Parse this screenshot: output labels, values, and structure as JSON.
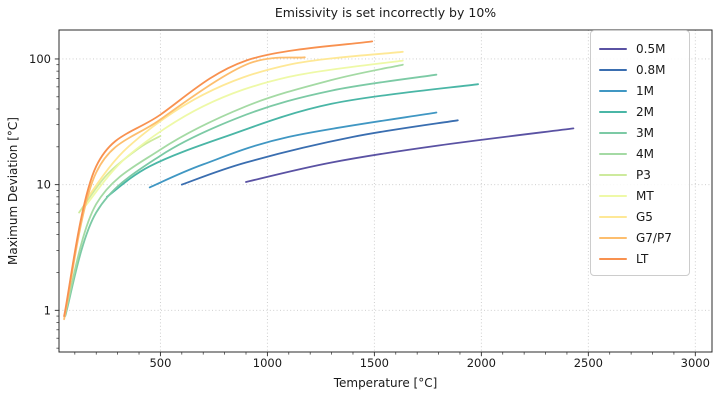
{
  "chart_data": {
    "type": "line",
    "title": "Emissivity is set incorrectly by 10%",
    "xlabel": "Temperature [°C]",
    "ylabel": "Maximum Deviation [°C]",
    "x_scale": "linear",
    "y_scale": "log",
    "xlim": [
      26,
      3078
    ],
    "ylim": [
      0.466,
      170
    ],
    "x_ticks": [
      500,
      1000,
      1500,
      2000,
      2500,
      3000
    ],
    "x_minor_step": 100,
    "y_ticks": [
      1,
      10,
      100
    ],
    "grid": true,
    "grid_style": "dotted",
    "legend_position": "upper right",
    "colors": {
      "spine": "#2b2b2b",
      "grid": "#c9c9c9",
      "tick_label": "#1a1a1a"
    },
    "series": [
      {
        "name": "0.5M",
        "color": "#5a52a3",
        "points": [
          [
            900,
            10.5
          ],
          [
            1300,
            15
          ],
          [
            1800,
            20.5
          ],
          [
            2430,
            28
          ]
        ]
      },
      {
        "name": "0.8M",
        "color": "#3a6eb0",
        "points": [
          [
            600,
            10
          ],
          [
            900,
            15
          ],
          [
            1400,
            24
          ],
          [
            1890,
            32.5
          ]
        ]
      },
      {
        "name": "1M",
        "color": "#4097c3",
        "points": [
          [
            450,
            9.5
          ],
          [
            700,
            14.5
          ],
          [
            1100,
            24
          ],
          [
            1790,
            37.5
          ]
        ]
      },
      {
        "name": "2M",
        "color": "#4ab6a6",
        "points": [
          [
            250,
            8
          ],
          [
            450,
            14
          ],
          [
            800,
            24
          ],
          [
            1300,
            44
          ],
          [
            1985,
            63
          ]
        ]
      },
      {
        "name": "3M",
        "color": "#7ccaa5",
        "points": [
          [
            55,
            0.9
          ],
          [
            200,
            6
          ],
          [
            500,
            17
          ],
          [
            900,
            36
          ],
          [
            1300,
            56
          ],
          [
            1790,
            75
          ]
        ]
      },
      {
        "name": "4M",
        "color": "#a4daa4",
        "points": [
          [
            55,
            0.95
          ],
          [
            200,
            7
          ],
          [
            500,
            19
          ],
          [
            900,
            42
          ],
          [
            1300,
            68
          ],
          [
            1633,
            90
          ]
        ]
      },
      {
        "name": "P3",
        "color": "#cdea9d",
        "points": [
          [
            120,
            6
          ],
          [
            250,
            12
          ],
          [
            400,
            19.5
          ],
          [
            500,
            24.4
          ]
        ]
      },
      {
        "name": "MT",
        "color": "#eef9a7",
        "points": [
          [
            150,
            6.8
          ],
          [
            350,
            17
          ],
          [
            700,
            42
          ],
          [
            1100,
            72
          ],
          [
            1633,
            97
          ]
        ]
      },
      {
        "name": "G5",
        "color": "#fee896",
        "points": [
          [
            150,
            7.5
          ],
          [
            350,
            20
          ],
          [
            700,
            52
          ],
          [
            1100,
            90
          ],
          [
            1633,
            114
          ]
        ]
      },
      {
        "name": "G7/P7",
        "color": "#fdbe6e",
        "points": [
          [
            50,
            0.85
          ],
          [
            200,
            12.5
          ],
          [
            500,
            33
          ],
          [
            900,
            90
          ],
          [
            1175,
            103
          ]
        ]
      },
      {
        "name": "LT",
        "color": "#f8914f",
        "points": [
          [
            50,
            0.9
          ],
          [
            200,
            14
          ],
          [
            500,
            36
          ],
          [
            900,
            97
          ],
          [
            1490,
            138
          ]
        ]
      }
    ]
  }
}
